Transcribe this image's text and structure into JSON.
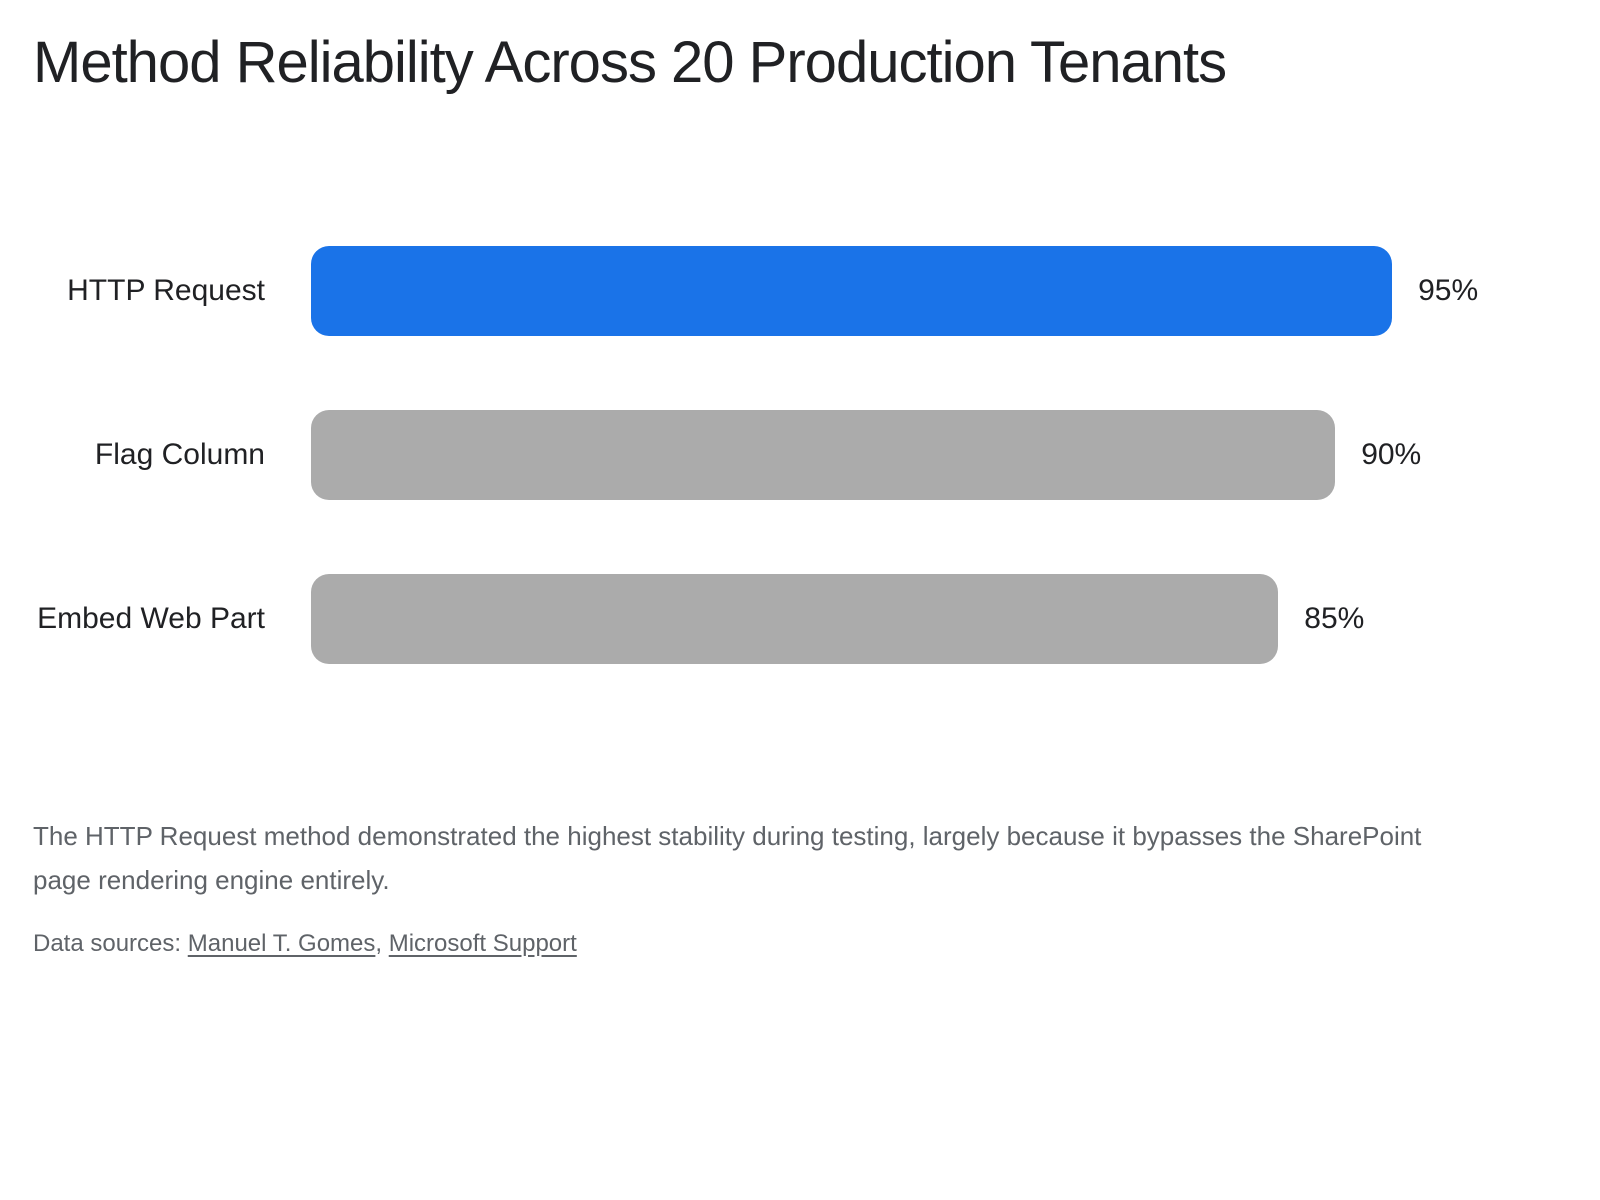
{
  "chart_data": {
    "type": "bar",
    "orientation": "horizontal",
    "title": "Method Reliability Across 20 Production Tenants",
    "categories": [
      "HTTP Request",
      "Flag Column",
      "Embed Web Part"
    ],
    "values": [
      95,
      90,
      85
    ],
    "value_labels": [
      "95%",
      "90%",
      "85%"
    ],
    "xlim": [
      0,
      100
    ],
    "grid": false,
    "legend": false,
    "highlight_index": 0,
    "colors": {
      "highlight_bar": "#1a73e8",
      "default_bar": "#ababab",
      "title_text": "#202124",
      "label_text": "#202124",
      "value_text": "#202124"
    }
  },
  "footer": {
    "note": "The HTTP Request method demonstrated the highest stability during testing, largely because it bypasses the SharePoint page rendering engine entirely.",
    "sources_label": "Data sources:",
    "sources": [
      "Manuel T. Gomes",
      "Microsoft Support"
    ],
    "sources_separator": ", ",
    "note_color": "#5f6368"
  }
}
